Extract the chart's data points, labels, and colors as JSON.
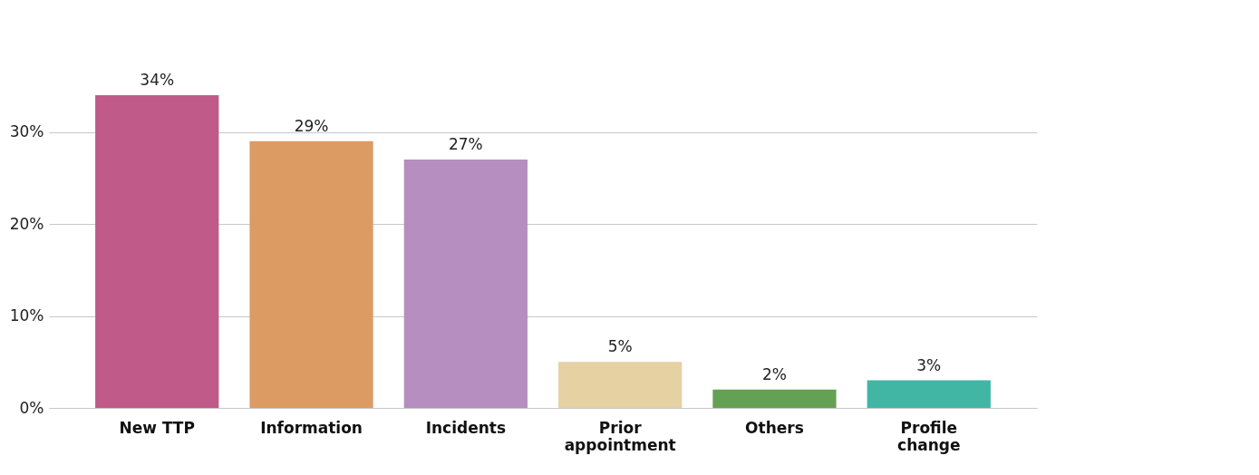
{
  "chart_data": {
    "type": "bar",
    "categories": [
      "New TTP",
      "Information",
      "Incidents",
      "Prior appointment",
      "Others",
      "Profile change"
    ],
    "values": [
      34,
      29,
      27,
      5,
      2,
      3
    ],
    "colors": [
      "#c05a89",
      "#dc9b63",
      "#b68ec0",
      "#e6d1a3",
      "#65a155",
      "#42b6a4"
    ],
    "value_labels": [
      "34%",
      "29%",
      "27%",
      "5%",
      "2%",
      "3%"
    ],
    "ylim": [
      0,
      34
    ],
    "yticks": [
      {
        "value": 0,
        "label": "0%"
      },
      {
        "value": 10,
        "label": "10%"
      },
      {
        "value": 20,
        "label": "20%"
      },
      {
        "value": 30,
        "label": "30%"
      }
    ],
    "grid": "y"
  }
}
